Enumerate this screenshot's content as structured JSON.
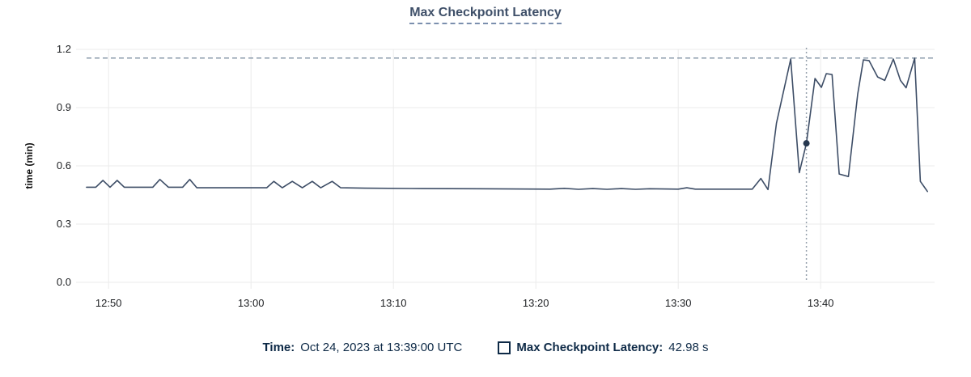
{
  "title": "Max Checkpoint Latency",
  "legend": {
    "time_label": "Time:",
    "time_value": "Oct 24, 2023 at 13:39:00 UTC",
    "series_label": "Max Checkpoint Latency:",
    "series_value": "42.98 s"
  },
  "colors": {
    "line": "#3d4d66",
    "highlight_dot": "#273850",
    "crosshair": "#95a0ac",
    "max_dashed_line": "#64798f",
    "grid": "#ebebeb",
    "tick_text": "#1c1e21",
    "title_text": "#3f5069",
    "legend_text": "#0e2a47"
  },
  "chart_data": {
    "type": "line",
    "title": "Max Checkpoint Latency",
    "xlabel": "",
    "ylabel": "time (min)",
    "ylim": [
      0,
      1.2
    ],
    "y_ticks": [
      "0.0",
      "0.3",
      "0.6",
      "0.9",
      "1.2"
    ],
    "x_start": "12:48",
    "x_end": "13:48",
    "x_ticks": [
      {
        "label": "12:50",
        "offset_min": 2
      },
      {
        "label": "13:00",
        "offset_min": 12
      },
      {
        "label": "13:10",
        "offset_min": 22
      },
      {
        "label": "13:20",
        "offset_min": 32
      },
      {
        "label": "13:30",
        "offset_min": 42
      },
      {
        "label": "13:40",
        "offset_min": 52
      }
    ],
    "grid": true,
    "legend_position": "bottom",
    "series": [
      {
        "name": "Max Checkpoint Latency",
        "unit": "minutes",
        "points": [
          [
            0.45,
            0.49
          ],
          [
            1.1,
            0.49
          ],
          [
            1.6,
            0.525
          ],
          [
            2.1,
            0.49
          ],
          [
            2.6,
            0.525
          ],
          [
            3.1,
            0.49
          ],
          [
            5.1,
            0.49
          ],
          [
            5.6,
            0.53
          ],
          [
            6.2,
            0.49
          ],
          [
            7.2,
            0.49
          ],
          [
            7.7,
            0.53
          ],
          [
            8.2,
            0.487
          ],
          [
            13.1,
            0.487
          ],
          [
            13.6,
            0.52
          ],
          [
            14.2,
            0.487
          ],
          [
            14.9,
            0.52
          ],
          [
            15.6,
            0.487
          ],
          [
            16.3,
            0.52
          ],
          [
            16.9,
            0.487
          ],
          [
            17.7,
            0.52
          ],
          [
            18.3,
            0.487
          ],
          [
            20.0,
            0.485
          ],
          [
            24.0,
            0.483
          ],
          [
            28.0,
            0.482
          ],
          [
            33.0,
            0.48
          ],
          [
            34.0,
            0.484
          ],
          [
            35.0,
            0.479
          ],
          [
            36.0,
            0.483
          ],
          [
            37.0,
            0.479
          ],
          [
            38.0,
            0.483
          ],
          [
            39.0,
            0.479
          ],
          [
            40.0,
            0.482
          ],
          [
            42.0,
            0.48
          ],
          [
            42.6,
            0.487
          ],
          [
            43.2,
            0.48
          ],
          [
            45.0,
            0.48
          ],
          [
            47.2,
            0.48
          ],
          [
            47.8,
            0.535
          ],
          [
            48.3,
            0.478
          ],
          [
            48.9,
            0.82
          ],
          [
            49.9,
            1.15
          ],
          [
            50.5,
            0.565
          ],
          [
            51.0,
            0.716
          ],
          [
            51.6,
            1.05
          ],
          [
            52.05,
            1.004
          ],
          [
            52.4,
            1.075
          ],
          [
            52.8,
            1.07
          ],
          [
            53.3,
            0.558
          ],
          [
            53.95,
            0.545
          ],
          [
            54.6,
            0.97
          ],
          [
            55.0,
            1.146
          ],
          [
            55.4,
            1.142
          ],
          [
            56.0,
            1.058
          ],
          [
            56.5,
            1.04
          ],
          [
            57.1,
            1.15
          ],
          [
            57.6,
            1.04
          ],
          [
            58.0,
            1.002
          ],
          [
            58.6,
            1.155
          ],
          [
            59.0,
            0.52
          ],
          [
            59.5,
            0.468
          ]
        ]
      }
    ],
    "annotations": {
      "max_dashed_line_value": 1.155,
      "crosshair": {
        "offset_min": 51.0,
        "time": "13:39:00",
        "value_min": 0.716,
        "value_display": "42.98 s"
      }
    }
  }
}
